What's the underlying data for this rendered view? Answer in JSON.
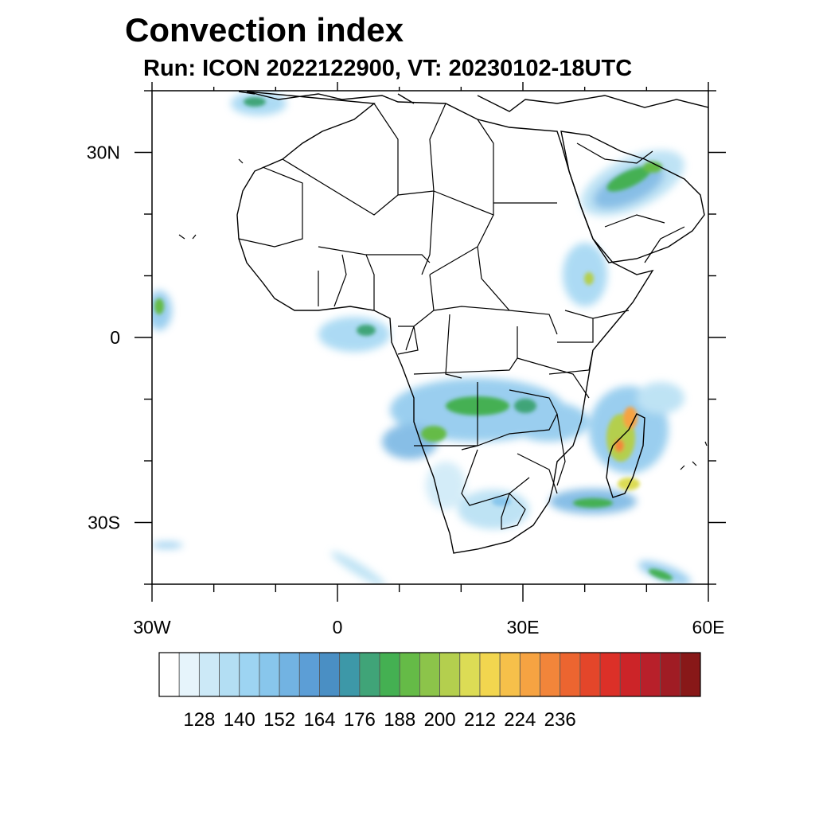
{
  "title": "Convection index",
  "subtitle": "Run: ICON 2022122900,  VT: 20230102-18UTC",
  "map": {
    "projection": "lat-lon",
    "lon_range": [
      -30,
      60
    ],
    "lat_range": [
      -40,
      40
    ],
    "x_ticks": [
      {
        "value": -30,
        "label": "30W"
      },
      {
        "value": 0,
        "label": "0"
      },
      {
        "value": 30,
        "label": "30E"
      },
      {
        "value": 60,
        "label": "60E"
      }
    ],
    "y_ticks": [
      {
        "value": 30,
        "label": "30N"
      },
      {
        "value": 0,
        "label": "0"
      },
      {
        "value": -30,
        "label": "30S"
      }
    ]
  },
  "colorbar": {
    "colors": [
      "#ffffff",
      "#e6f4fb",
      "#cce9f7",
      "#b3def3",
      "#9dd4f2",
      "#88c6ec",
      "#72b3e2",
      "#5c9ed6",
      "#4a8fc4",
      "#3d98a8",
      "#40a478",
      "#44b052",
      "#65bb47",
      "#8cc44a",
      "#b4cf4e",
      "#dcdc55",
      "#f2d64f",
      "#f6c04a",
      "#f6a342",
      "#f2853a",
      "#ec6530",
      "#e4462a",
      "#dc3028",
      "#cc2428",
      "#b8202a",
      "#a01c24",
      "#881818"
    ],
    "labels": [
      "128",
      "140",
      "152",
      "164",
      "176",
      "188",
      "200",
      "212",
      "224",
      "236"
    ],
    "label_every": 2,
    "label_first_boundary": 2
  }
}
